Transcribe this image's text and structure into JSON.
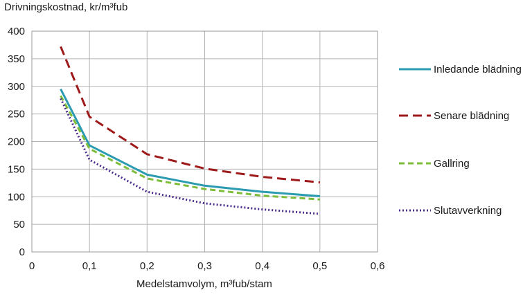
{
  "chart_data": {
    "type": "line",
    "ylabel": "Drivningskostnad, kr/m³fub",
    "xlabel": "Medelstamvolym, m³fub/stam",
    "xlim": [
      0,
      0.6
    ],
    "ylim": [
      0,
      400
    ],
    "x_ticks": [
      "0",
      "0,1",
      "0,2",
      "0,3",
      "0,4",
      "0,5",
      "0,6"
    ],
    "y_ticks": [
      "0",
      "50",
      "100",
      "150",
      "200",
      "250",
      "300",
      "350",
      "400"
    ],
    "grid": true,
    "legend_position": "right",
    "x": [
      0.05,
      0.1,
      0.2,
      0.3,
      0.4,
      0.5
    ],
    "series": [
      {
        "name": "Inledande blädning",
        "values": [
          295,
          193,
          140,
          120,
          109,
          101
        ],
        "color": "#2a9bb0",
        "style": "solid"
      },
      {
        "name": "Senare blädning",
        "values": [
          372,
          245,
          177,
          151,
          136,
          126
        ],
        "color": "#9e1a1a",
        "style": "dashed"
      },
      {
        "name": "Gallring",
        "values": [
          283,
          187,
          133,
          114,
          102,
          95
        ],
        "color": "#7dbd3a",
        "style": "dashed-short"
      },
      {
        "name": "Slutavverkning",
        "values": [
          278,
          167,
          109,
          88,
          77,
          69
        ],
        "color": "#4b2b8c",
        "style": "dotted"
      }
    ]
  }
}
